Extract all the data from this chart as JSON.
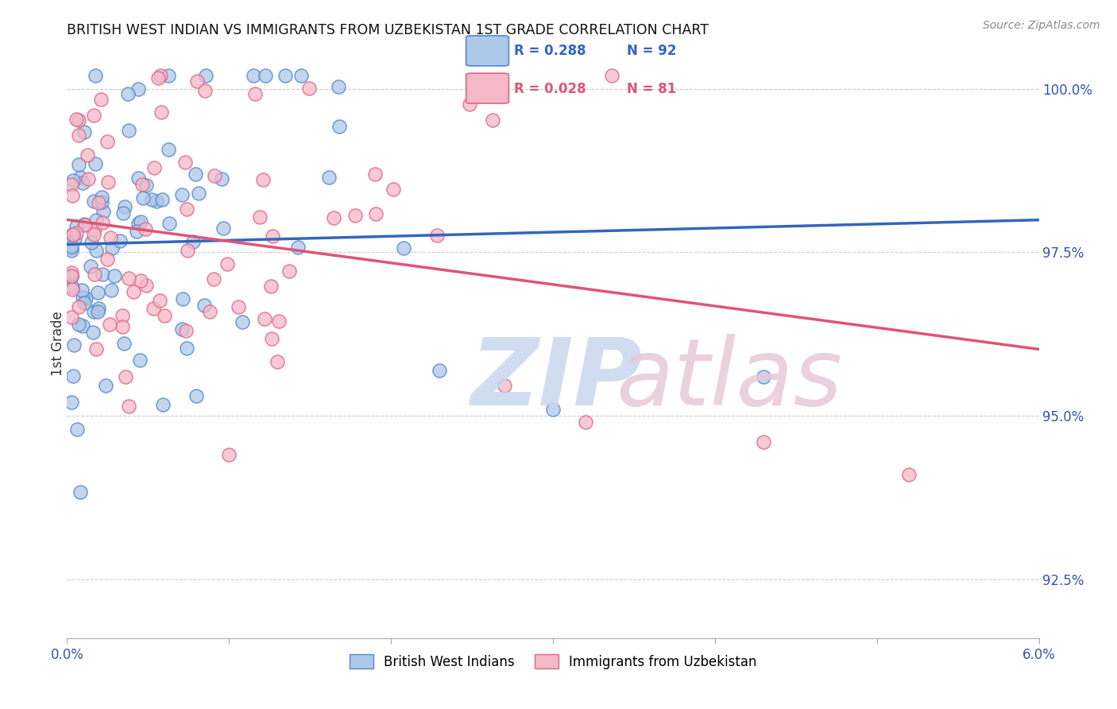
{
  "title": "BRITISH WEST INDIAN VS IMMIGRANTS FROM UZBEKISTAN 1ST GRADE CORRELATION CHART",
  "source": "Source: ZipAtlas.com",
  "ylabel": "1st Grade",
  "ytick_labels": [
    "92.5%",
    "95.0%",
    "97.5%",
    "100.0%"
  ],
  "ytick_values": [
    0.925,
    0.95,
    0.975,
    1.0
  ],
  "xmin": 0.0,
  "xmax": 0.06,
  "ymin": 0.916,
  "ymax": 1.006,
  "legend_r1": "R = 0.288",
  "legend_n1": "N = 92",
  "legend_r2": "R = 0.028",
  "legend_n2": "N = 81",
  "color_blue": "#aec8e8",
  "color_pink": "#f4b8c8",
  "edge_color_blue": "#5588cc",
  "edge_color_pink": "#dd6688",
  "line_color_blue": "#3366bb",
  "line_color_pink": "#dd5577",
  "watermark_zip_color": "#c8d8ee",
  "watermark_atlas_color": "#e8c8d8",
  "n_blue": 92,
  "n_pink": 81,
  "blue_seed": 42,
  "pink_seed": 99,
  "blue_R": 0.288,
  "pink_R": 0.028
}
